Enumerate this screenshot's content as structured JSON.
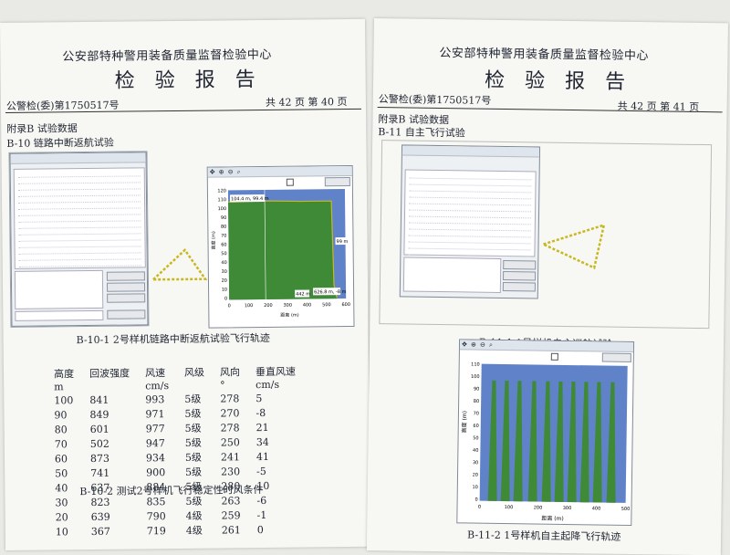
{
  "left_page": {
    "org": "公安部特种警用装备质量监督检验中心",
    "title": "检验报告",
    "report_no": "公警检(委)第1750517号",
    "page_info": "共 42 页 第 40 页",
    "appendix": "附录B  试验数据",
    "section": "B-10  链路中断返航试验",
    "figure1_caption": "B-10-1  2号样机链路中断返航试验飞行轨迹",
    "plot_readout_1": "104.4 m, 99.4 m",
    "plot_readout_2": "626.8 m, -8 m",
    "plot_readout_3": "99 m",
    "plot_readout_4": "442 m",
    "x_axis_label": "距离 (m)",
    "y_axis_label": "高度 (m)",
    "y_ticks": [
      "120",
      "110",
      "100",
      "90",
      "80",
      "70",
      "60",
      "50",
      "40",
      "30",
      "20",
      "10",
      "0"
    ],
    "x_ticks": [
      "0",
      "100",
      "200",
      "300",
      "400",
      "500",
      "600"
    ],
    "wind_table": {
      "headers": [
        "高度\nm",
        "回波强度",
        "风速\ncm/s",
        "风级",
        "风向\n°",
        "垂直风速\ncm/s"
      ],
      "rows": [
        [
          "100",
          "841",
          "993",
          "5级",
          "278",
          "5"
        ],
        [
          "90",
          "849",
          "971",
          "5级",
          "270",
          "-8"
        ],
        [
          "80",
          "601",
          "977",
          "5级",
          "278",
          "21"
        ],
        [
          "70",
          "502",
          "947",
          "5级",
          "250",
          "34"
        ],
        [
          "60",
          "873",
          "934",
          "5级",
          "241",
          "41"
        ],
        [
          "50",
          "741",
          "900",
          "5级",
          "230",
          "-5"
        ],
        [
          "40",
          "637",
          "884",
          "5级",
          "280",
          "10"
        ],
        [
          "30",
          "823",
          "835",
          "5级",
          "263",
          "-6"
        ],
        [
          "20",
          "639",
          "790",
          "4级",
          "259",
          "-1"
        ],
        [
          "10",
          "367",
          "719",
          "4级",
          "261",
          "0"
        ]
      ]
    },
    "table_caption": "B-10-2  测试2号样机飞行稳定性时风条件"
  },
  "right_page": {
    "org": "公安部特种警用装备质量监督检验中心",
    "title": "检验报告",
    "report_no": "公警检(委)第1750517号",
    "page_info": "共 42 页 第 41 页",
    "appendix": "附录B  试验数据",
    "section": "B-11  自主飞行试验",
    "figure1_caption": "B-11-1  1号样机自主巡航试验",
    "figure2_caption": "B-11-2  1号样机自主起降飞行轨迹",
    "x_axis_label": "距离 (m)",
    "y_axis_label": "高度 (m)",
    "y_ticks": [
      "110",
      "100",
      "90",
      "80",
      "70",
      "60",
      "50",
      "40",
      "30",
      "20",
      "10",
      "0"
    ],
    "x_ticks": [
      "0",
      "100",
      "200",
      "300",
      "400",
      "500"
    ]
  },
  "colors": {
    "sky": "#5f82c9",
    "terrain_green": "#3f8a36",
    "trajectory_yellow": "#c8b820"
  }
}
